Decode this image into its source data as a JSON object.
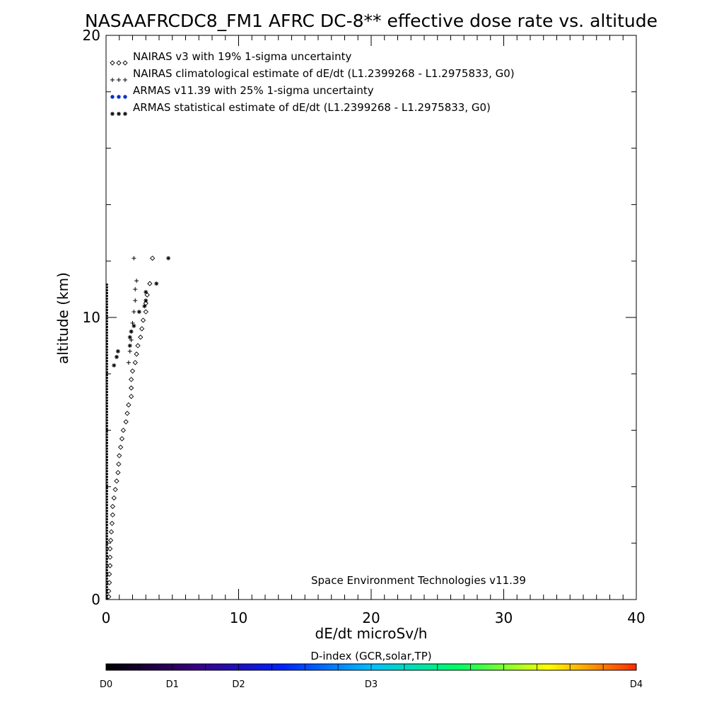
{
  "chart_data": {
    "type": "scatter",
    "title": "NASAAFRCDC8_FM1 AFRC DC-8** effective dose rate vs. altitude",
    "xlabel": "dE/dt microSv/h",
    "ylabel": "altitude (km)",
    "xlim": [
      0,
      40
    ],
    "ylim": [
      0,
      20
    ],
    "x_ticks": [
      "0",
      "10",
      "20",
      "30",
      "40"
    ],
    "y_ticks": [
      "0",
      "10",
      "20"
    ],
    "grid": false,
    "legend_position": "top-left",
    "credit": "Space Environment Technologies v11.39",
    "series": [
      {
        "name": "NAIRAS v3 with 19% 1-sigma uncertainty",
        "marker": "diamond",
        "color": "#000000",
        "points": [
          [
            0.2,
            0.1
          ],
          [
            0.2,
            0.3
          ],
          [
            0.25,
            0.6
          ],
          [
            0.25,
            0.9
          ],
          [
            0.3,
            1.2
          ],
          [
            0.3,
            1.5
          ],
          [
            0.3,
            1.8
          ],
          [
            0.35,
            2.1
          ],
          [
            0.4,
            2.4
          ],
          [
            0.45,
            2.7
          ],
          [
            0.5,
            3.0
          ],
          [
            0.5,
            3.3
          ],
          [
            0.6,
            3.6
          ],
          [
            0.7,
            3.9
          ],
          [
            0.8,
            4.2
          ],
          [
            0.9,
            4.5
          ],
          [
            0.95,
            4.8
          ],
          [
            1.0,
            5.1
          ],
          [
            1.1,
            5.4
          ],
          [
            1.2,
            5.7
          ],
          [
            1.3,
            6.0
          ],
          [
            1.5,
            6.3
          ],
          [
            1.6,
            6.6
          ],
          [
            1.7,
            6.9
          ],
          [
            1.9,
            7.2
          ],
          [
            1.9,
            7.5
          ],
          [
            1.9,
            7.8
          ],
          [
            2.0,
            8.1
          ],
          [
            2.2,
            8.4
          ],
          [
            2.3,
            8.7
          ],
          [
            2.4,
            9.0
          ],
          [
            2.6,
            9.3
          ],
          [
            2.7,
            9.6
          ],
          [
            2.8,
            9.9
          ],
          [
            3.0,
            10.2
          ],
          [
            3.0,
            10.5
          ],
          [
            3.1,
            10.8
          ],
          [
            3.3,
            11.2
          ],
          [
            3.5,
            12.1
          ]
        ]
      },
      {
        "name": "NAIRAS climatological estimate of dE/dt (L1.2399268 - L1.2975833, G0)",
        "marker": "plus",
        "color": "#000000",
        "points": [
          [
            1.7,
            8.4
          ],
          [
            1.8,
            8.8
          ],
          [
            1.9,
            9.2
          ],
          [
            1.9,
            9.5
          ],
          [
            2.0,
            9.8
          ],
          [
            2.1,
            10.2
          ],
          [
            2.2,
            10.6
          ],
          [
            2.2,
            11.0
          ],
          [
            2.3,
            11.3
          ],
          [
            2.1,
            12.1
          ]
        ]
      },
      {
        "name": "ARMAS v11.39 with 25% 1-sigma uncertainty",
        "marker": "dot",
        "color": "#0033cc",
        "points": []
      },
      {
        "name": "ARMAS statistical estimate of dE/dt (L1.2399268 - L1.2975833, G0)",
        "marker": "asterisk",
        "color": "#000000",
        "points": [
          [
            0.6,
            8.3
          ],
          [
            0.8,
            8.6
          ],
          [
            0.9,
            8.8
          ],
          [
            1.8,
            9.0
          ],
          [
            1.8,
            9.3
          ],
          [
            1.9,
            9.5
          ],
          [
            2.1,
            9.7
          ],
          [
            2.5,
            10.2
          ],
          [
            2.9,
            10.4
          ],
          [
            3.0,
            10.6
          ],
          [
            3.0,
            10.9
          ],
          [
            3.8,
            11.2
          ],
          [
            4.7,
            12.1
          ]
        ]
      }
    ],
    "colorbar": {
      "title": "D-index (GCR,solar,TP)",
      "ticks": [
        {
          "label": "D0",
          "value": 0
        },
        {
          "label": "D1",
          "value": 1
        },
        {
          "label": "D2",
          "value": 2
        },
        {
          "label": "D3",
          "value": 4
        },
        {
          "label": "D4",
          "value": 8
        }
      ],
      "range": [
        0,
        8
      ],
      "colors": [
        "#000000",
        "#3a0080",
        "#0022ff",
        "#00c0ff",
        "#00ff60",
        "#ffff00",
        "#ff2a00"
      ]
    }
  }
}
